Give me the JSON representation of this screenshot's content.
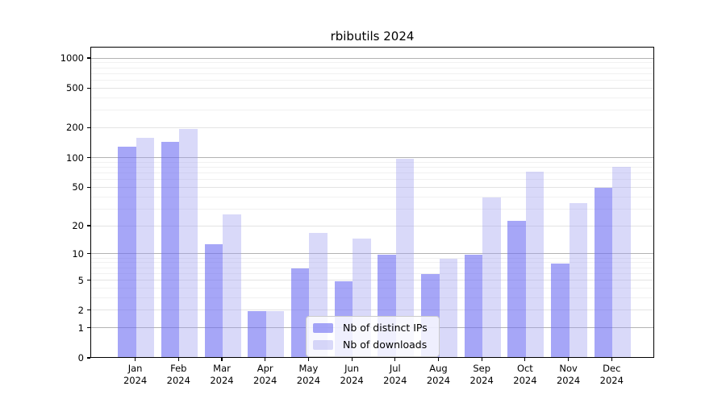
{
  "chart_data": {
    "type": "bar",
    "title": "rbibutils 2024",
    "categories": [
      "Jan",
      "Feb",
      "Mar",
      "Apr",
      "May",
      "Jun",
      "Jul",
      "Aug",
      "Sep",
      "Oct",
      "Nov",
      "Dec"
    ],
    "x_tick_year": "2024",
    "series": [
      {
        "key": "distinct-ips",
        "name": "Nb of distinct IPs",
        "color": "rgba(107,107,242,0.6)",
        "color_hex": "#a6a6f7",
        "values": [
          130,
          146,
          13,
          2,
          7,
          5,
          10,
          6,
          10,
          23,
          8,
          50
        ]
      },
      {
        "key": "downloads",
        "name": "Nb of downloads",
        "color": "rgba(160,160,240,0.4)",
        "color_hex": "#d9d9f9",
        "values": [
          160,
          199,
          27,
          2,
          17,
          15,
          100,
          9,
          40,
          73,
          35,
          82
        ]
      }
    ],
    "y_axis": {
      "scale": "log1p",
      "ticks": [
        0,
        1,
        2,
        5,
        10,
        20,
        50,
        100,
        200,
        500,
        1000
      ],
      "decade_ticks": [
        1,
        10,
        100,
        1000
      ],
      "minor_ticks": [
        3,
        4,
        6,
        7,
        8,
        9,
        30,
        40,
        60,
        70,
        80,
        90,
        300,
        400,
        600,
        700,
        800,
        900
      ],
      "top_value": 1300
    },
    "colors": {
      "grid_decade": "#b3b3b3",
      "grid_major": "#e3e3e3",
      "grid_minor": "#f1f1f1",
      "spine": "#000000",
      "background": "#ffffff"
    },
    "legend": {
      "position": "lower center"
    },
    "grid": true
  }
}
